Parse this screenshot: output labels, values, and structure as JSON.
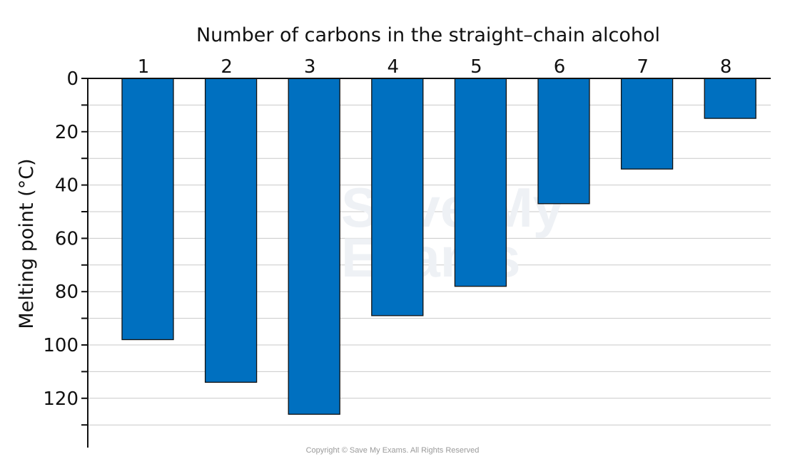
{
  "chart_data": {
    "type": "bar",
    "x_label": "Number of carbons in the straight–chain alcohol",
    "y_label": "Melting point (°C)",
    "categories": [
      "1",
      "2",
      "3",
      "4",
      "5",
      "6",
      "7",
      "8"
    ],
    "values": [
      -98,
      -114,
      -126,
      -89,
      -78,
      -47,
      -34,
      -15
    ],
    "y_range": [
      0,
      -130
    ],
    "y_ticks": [
      "0",
      "20",
      "40",
      "60",
      "80",
      "100",
      "120"
    ],
    "y_tick_values": [
      0,
      -20,
      -40,
      -60,
      -80,
      -100,
      -120
    ],
    "x_axis_position": "top",
    "bars_hang_downward": true,
    "grid": true,
    "legend": "none",
    "bar_color": "#0070c0"
  },
  "watermark": {
    "line1": "Save My",
    "line2": "Exams"
  },
  "copyright": "Copyright © Save My Exams. All Rights Reserved"
}
